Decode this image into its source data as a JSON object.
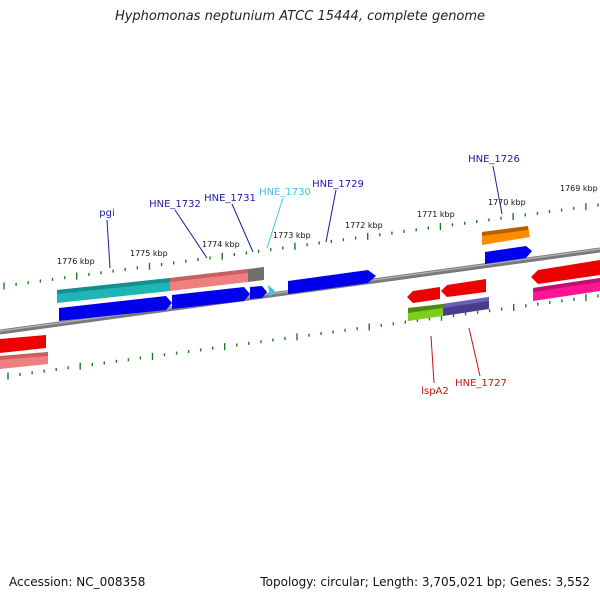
{
  "title": "Hyphomonas neptunium ATCC 15444, complete genome",
  "footer": {
    "accession": "Accession: NC_008358",
    "summary": "Topology: circular; Length: 3,705,021 bp; Genes: 3,552"
  },
  "ticks": [
    "1776 kbp",
    "1775 kbp",
    "1774 kbp",
    "1773 kbp",
    "1772 kbp",
    "1771 kbp",
    "1770 kbp",
    "1769 kbp"
  ],
  "genes": [
    {
      "name": "pgi",
      "color": "#1a1aa6"
    },
    {
      "name": "HNE_1732",
      "color": "#1a1aa6"
    },
    {
      "name": "HNE_1731",
      "color": "#1a1aa6"
    },
    {
      "name": "HNE_1730",
      "color": "#3cc4e6"
    },
    {
      "name": "HNE_1729",
      "color": "#1a1aa6"
    },
    {
      "name": "HNE_1726",
      "color": "#1a1aa6"
    },
    {
      "name": "lspA2",
      "color": "#cc1111"
    },
    {
      "name": "HNE_1727",
      "color": "#cc1111"
    }
  ],
  "colors": {
    "backbone": "#808080",
    "tick": "#1e7a1e",
    "forward_cds": "#0000ee",
    "reverse_cds": "#ee0000",
    "teal": "#1fb5b5",
    "salmon": "#f08080",
    "orange": "#ff8c00",
    "magenta": "#ff1493",
    "lime": "#7ccd1e",
    "slate": "#483d8b"
  }
}
